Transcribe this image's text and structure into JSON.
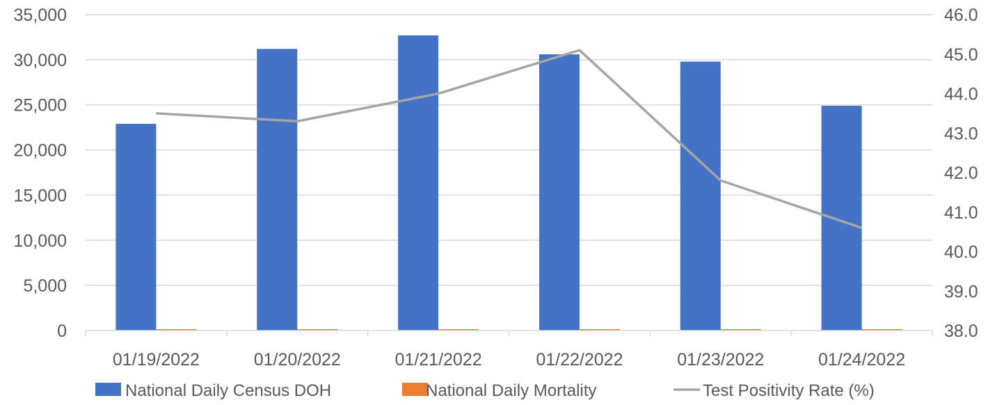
{
  "chart_data": {
    "type": "bar",
    "categories": [
      "01/19/2022",
      "01/20/2022",
      "01/21/2022",
      "01/22/2022",
      "01/23/2022",
      "01/24/2022"
    ],
    "series": [
      {
        "name": "National Daily Census DOH",
        "kind": "bar",
        "axis": "left",
        "color": "#4472C4",
        "values": [
          22900,
          31200,
          32700,
          30600,
          29800,
          24900
        ]
      },
      {
        "name": "National Daily Mortality",
        "kind": "bar",
        "axis": "left",
        "color": "#ED7D31",
        "values": [
          100,
          100,
          100,
          100,
          100,
          100
        ]
      },
      {
        "name": "Test Positivity Rate (%)",
        "kind": "line",
        "axis": "right",
        "color": "#A5A5A5",
        "values": [
          43.5,
          43.3,
          44.0,
          45.1,
          41.8,
          40.6
        ]
      }
    ],
    "y_left": {
      "ylim": [
        0,
        35000
      ],
      "ticks": [
        0,
        5000,
        10000,
        15000,
        20000,
        25000,
        30000,
        35000
      ],
      "tick_labels": [
        "0",
        "5,000",
        "10,000",
        "15,000",
        "20,000",
        "25,000",
        "30,000",
        "35,000"
      ]
    },
    "y_right": {
      "ylim": [
        38.0,
        46.0
      ],
      "ticks": [
        38,
        39,
        40,
        41,
        42,
        43,
        44,
        45,
        46
      ],
      "tick_labels": [
        "38.0",
        "39.0",
        "40.0",
        "41.0",
        "42.0",
        "43.0",
        "44.0",
        "45.0",
        "46.0"
      ]
    },
    "grid": true,
    "legend_position": "bottom"
  }
}
